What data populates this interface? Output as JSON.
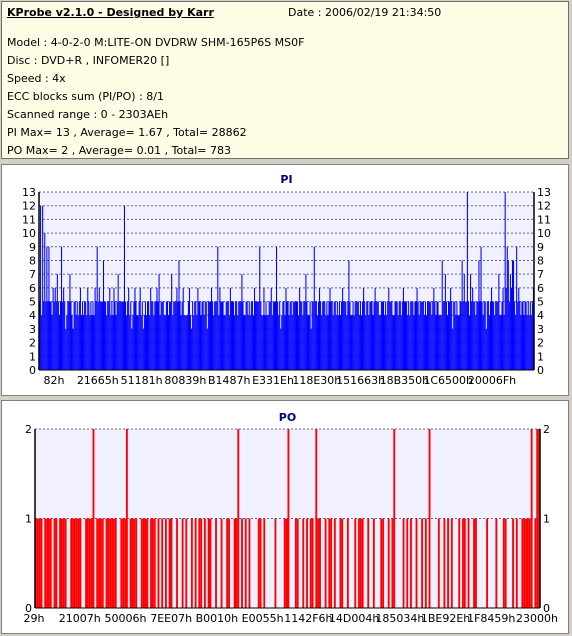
{
  "header": {
    "title": "KProbe v2.1.0 - Designed by Karr",
    "date": "Date : 2006/02/19 21:34:50",
    "lines": [
      "Model : 4-0-2-0 M:LITE-ON DVDRW SHM-165P6S MS0F",
      "Disc : DVD+R , INFOMER20 []",
      "Speed : 4x",
      "ECC blocks sum (PI/PO) : 8/1",
      "Scanned range : 0 - 2303AEh",
      "PI Max= 13 , Average= 1.67 , Total= 28862",
      "PO Max= 2 , Average= 0.01 , Total= 783"
    ]
  },
  "colors": {
    "pi": "#0000ff",
    "po": "#ff0000",
    "plot_bg": "#f0f0ff"
  },
  "chart_data": [
    {
      "type": "bar",
      "title": "PI",
      "ylim": [
        0,
        13
      ],
      "yticks": [
        0,
        1,
        2,
        3,
        4,
        5,
        6,
        7,
        8,
        9,
        10,
        11,
        12,
        13
      ],
      "xtick_labels": [
        "82h",
        "21665h",
        "51181h",
        "80839h",
        "B1487h",
        "E331Eh",
        "118E30h",
        "151663h",
        "18B350h",
        "1C6500h",
        "20006Fh"
      ],
      "grid": true,
      "values": [
        5,
        12,
        4,
        12,
        5,
        10,
        5,
        9,
        5,
        9,
        5,
        5,
        4,
        6,
        5,
        6,
        5,
        7,
        5,
        4,
        5,
        9,
        5,
        6,
        5,
        3,
        4,
        5,
        5,
        7,
        5,
        4,
        3,
        5,
        5,
        4,
        5,
        4,
        5,
        6,
        4,
        5,
        4,
        5,
        5,
        4,
        6,
        5,
        4,
        5,
        4,
        5,
        4,
        6,
        5,
        9,
        5,
        6,
        5,
        5,
        5,
        8,
        5,
        5,
        4,
        5,
        5,
        6,
        4,
        5,
        4,
        6,
        5,
        4,
        5,
        7,
        5,
        5,
        5,
        5,
        5,
        12,
        5,
        4,
        5,
        6,
        4,
        5,
        3,
        4,
        5,
        6,
        5,
        4,
        4,
        5,
        6,
        4,
        5,
        3,
        4,
        5,
        4,
        5,
        5,
        4,
        6,
        5,
        5,
        4,
        5,
        5,
        6,
        5,
        7,
        4,
        5,
        5,
        5,
        4,
        4,
        5,
        5,
        4,
        5,
        5,
        7,
        4,
        5,
        5,
        5,
        6,
        5,
        8,
        5,
        4,
        5,
        6,
        4,
        4,
        4,
        4,
        5,
        6,
        4,
        3,
        5,
        4,
        5,
        5,
        4,
        6,
        5,
        5,
        4,
        5,
        5,
        4,
        5,
        5,
        3,
        5,
        5,
        5,
        6,
        5,
        4,
        5,
        5,
        5,
        9,
        4,
        6,
        5,
        5,
        5,
        4,
        4,
        5,
        5,
        5,
        4,
        6,
        5,
        5,
        5,
        4,
        5,
        5,
        4,
        5,
        5,
        5,
        7,
        5,
        4,
        4,
        5,
        5,
        4,
        5,
        4,
        5,
        5,
        4,
        6,
        5,
        5,
        5,
        5,
        9,
        5,
        4,
        4,
        6,
        4,
        5,
        4,
        4,
        5,
        5,
        6,
        4,
        5,
        5,
        5,
        9,
        5,
        4,
        5,
        3,
        4,
        5,
        5,
        4,
        6,
        5,
        5,
        4,
        5,
        5,
        4,
        5,
        5,
        5,
        5,
        5,
        4,
        6,
        5,
        5,
        4,
        5,
        5,
        7,
        5,
        4,
        4,
        5,
        3,
        5,
        5,
        9,
        5,
        5,
        4,
        5,
        6,
        5,
        4,
        5,
        5,
        5,
        4,
        5,
        4,
        5,
        6,
        5,
        5,
        4,
        5,
        5,
        4,
        5,
        4,
        5,
        4,
        5,
        6,
        5,
        5,
        5,
        4,
        5,
        8,
        5,
        4,
        4,
        5,
        4,
        5,
        5,
        5,
        5,
        4,
        5,
        4,
        5,
        6,
        5,
        4,
        5,
        5,
        4,
        5,
        5,
        5,
        4,
        5,
        6,
        5,
        5,
        5,
        4,
        4,
        5,
        5,
        5,
        4,
        5,
        4,
        5,
        6,
        5,
        5,
        5,
        4,
        4,
        5,
        5,
        5,
        4,
        5,
        5,
        4,
        5,
        6,
        5,
        5,
        5,
        4,
        5,
        4,
        5,
        5,
        5,
        4,
        5,
        5,
        6,
        5,
        4,
        5,
        5,
        5,
        5,
        4,
        5,
        4,
        5,
        5,
        5,
        5,
        4,
        5,
        6,
        5,
        4,
        5,
        5,
        4,
        4,
        4,
        8,
        5,
        5,
        7,
        5,
        4,
        5,
        5,
        6,
        5,
        3,
        5,
        5,
        4,
        5,
        4,
        4,
        5,
        5,
        8,
        5,
        7,
        5,
        5,
        13,
        5,
        4,
        7,
        5,
        6,
        5,
        5,
        4,
        5,
        5,
        8,
        5,
        9,
        5,
        4,
        5,
        5,
        3,
        5,
        5,
        4,
        5,
        6,
        5,
        5,
        4,
        5,
        5,
        5,
        7,
        4,
        4,
        5,
        6,
        4,
        13,
        6,
        9,
        8,
        5,
        7,
        6,
        8,
        8,
        5,
        4,
        9,
        5,
        6,
        5,
        4,
        5,
        5,
        4,
        5,
        5,
        4,
        5,
        4,
        5,
        4,
        5,
        6
      ]
    },
    {
      "type": "bar",
      "title": "PO",
      "ylim": [
        0,
        2
      ],
      "yticks": [
        0,
        1,
        2
      ],
      "xtick_labels": [
        "29h",
        "21007h",
        "50006h",
        "7EE07h",
        "B0010h",
        "E0055h",
        "1142F6h",
        "14D004h",
        "185034h",
        "1BE92Eh",
        "1F8459h",
        "23000h"
      ],
      "grid": true,
      "values": [
        1,
        1,
        1,
        1,
        0,
        1,
        1,
        1,
        1,
        0,
        1,
        1,
        0,
        1,
        1,
        1,
        1,
        0,
        0,
        1,
        1,
        1,
        1,
        1,
        1,
        0,
        0,
        1,
        1,
        1,
        1,
        2,
        0,
        1,
        1,
        1,
        1,
        0,
        1,
        1,
        1,
        1,
        1,
        1,
        0,
        0,
        1,
        1,
        1,
        2,
        0,
        1,
        1,
        1,
        1,
        0,
        0,
        1,
        1,
        1,
        1,
        0,
        1,
        1,
        1,
        0,
        1,
        0,
        1,
        0,
        1,
        0,
        1,
        1,
        0,
        0,
        1,
        0,
        0,
        1,
        0,
        1,
        0,
        0,
        1,
        0,
        1,
        0,
        1,
        1,
        0,
        1,
        0,
        1,
        1,
        0,
        0,
        1,
        0,
        0,
        1,
        0,
        0,
        1,
        1,
        0,
        0,
        1,
        1,
        2,
        0,
        1,
        0,
        1,
        0,
        1,
        0,
        0,
        0,
        0,
        1,
        1,
        0,
        1,
        0,
        0,
        0,
        0,
        0,
        1,
        0,
        0,
        0,
        0,
        1,
        1,
        2,
        0,
        0,
        0,
        1,
        1,
        0,
        0,
        1,
        0,
        1,
        0,
        1,
        1,
        0,
        2,
        1,
        1,
        0,
        0,
        1,
        0,
        1,
        1,
        0,
        1,
        0,
        0,
        1,
        1,
        0,
        0,
        1,
        0,
        0,
        0,
        1,
        0,
        1,
        1,
        1,
        0,
        0,
        1,
        0,
        0,
        1,
        0,
        0,
        0,
        1,
        1,
        0,
        0,
        1,
        0,
        1,
        2,
        0,
        0,
        0,
        0,
        1,
        0,
        1,
        0,
        1,
        0,
        0,
        1,
        0,
        0,
        1,
        0,
        1,
        0,
        2,
        0,
        0,
        0,
        0,
        1,
        0,
        0,
        1,
        0,
        1,
        0,
        1,
        0,
        0,
        0,
        1,
        0,
        1,
        1,
        0,
        1,
        0,
        0,
        1,
        1,
        0,
        0,
        0,
        0,
        0,
        1,
        0,
        0,
        0,
        0,
        1,
        0,
        0,
        0,
        1,
        1,
        0,
        0,
        0,
        1,
        0,
        1,
        0,
        0,
        1,
        1,
        1,
        1,
        1,
        2,
        0,
        1,
        2,
        2
      ]
    }
  ]
}
